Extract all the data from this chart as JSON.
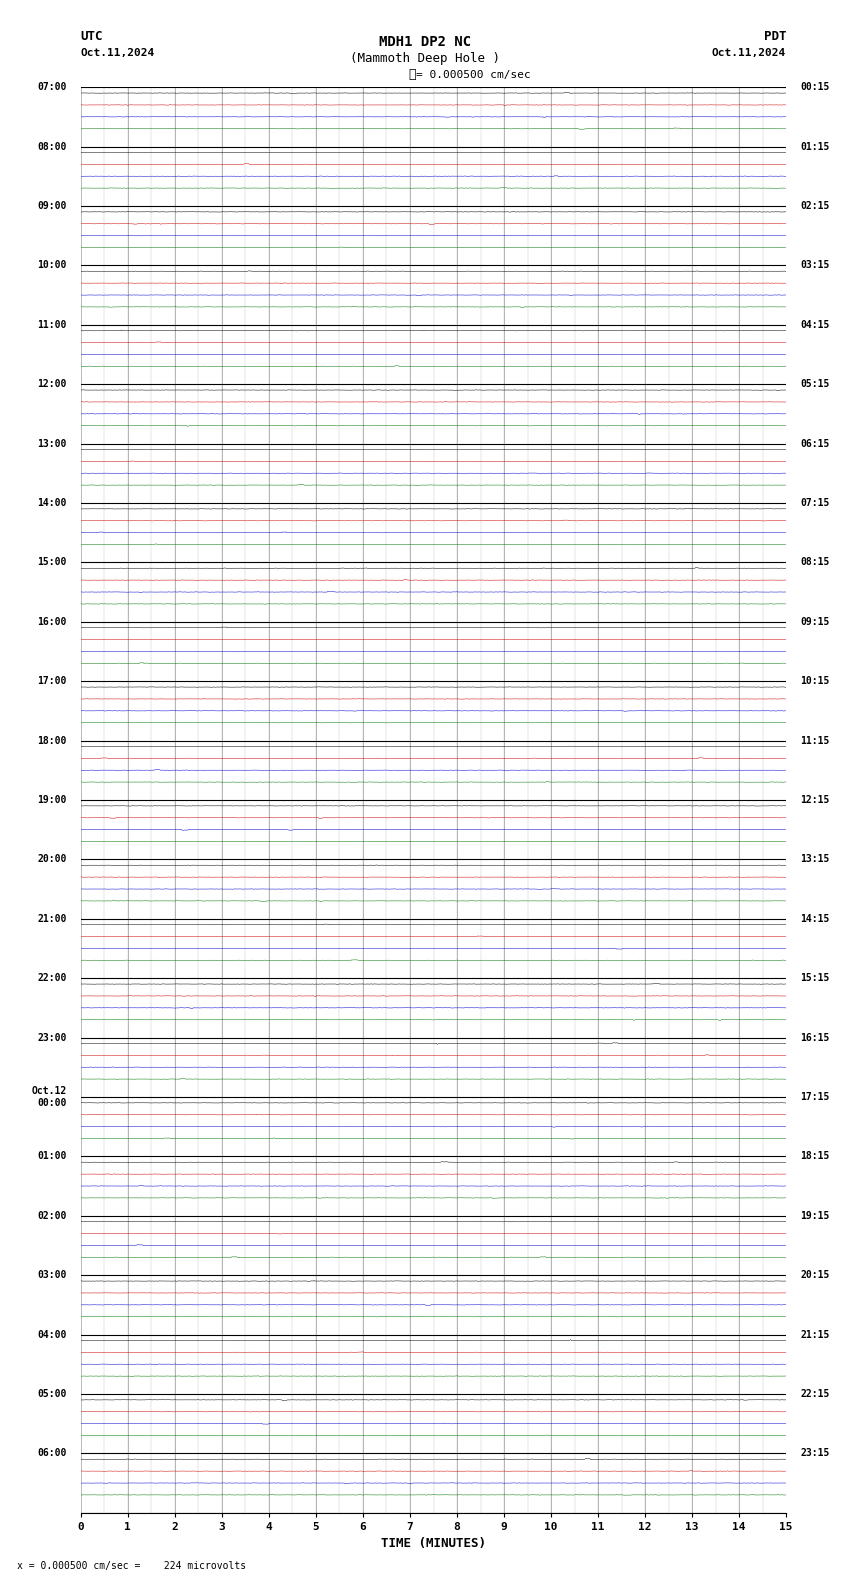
{
  "title_line1": "MDH1 DP2 NC",
  "title_line2": "(Mammoth Deep Hole )",
  "scale_label": "= 0.000500 cm/sec",
  "footer_label": "= 0.000500 cm/sec =    224 microvolts",
  "utc_label": "UTC",
  "pdt_label": "PDT",
  "date_left": "Oct.11,2024",
  "date_right": "Oct.11,2024",
  "xlabel": "TIME (MINUTES)",
  "x_ticks": [
    0,
    1,
    2,
    3,
    4,
    5,
    6,
    7,
    8,
    9,
    10,
    11,
    12,
    13,
    14,
    15
  ],
  "minutes_per_row": 15,
  "num_rows": 24,
  "left_times": [
    "07:00",
    "08:00",
    "09:00",
    "10:00",
    "11:00",
    "12:00",
    "13:00",
    "14:00",
    "15:00",
    "16:00",
    "17:00",
    "18:00",
    "19:00",
    "20:00",
    "21:00",
    "22:00",
    "23:00",
    "Oct.12\n00:00",
    "01:00",
    "02:00",
    "03:00",
    "04:00",
    "05:00",
    "06:00"
  ],
  "right_times": [
    "00:15",
    "01:15",
    "02:15",
    "03:15",
    "04:15",
    "05:15",
    "06:15",
    "07:15",
    "08:15",
    "09:15",
    "10:15",
    "11:15",
    "12:15",
    "13:15",
    "14:15",
    "15:15",
    "16:15",
    "17:15",
    "18:15",
    "19:15",
    "20:15",
    "21:15",
    "22:15",
    "23:15"
  ],
  "bg_color": "#ffffff",
  "trace_colors": [
    "#000000",
    "#cc0000",
    "#0000cc",
    "#007700"
  ],
  "separator_color": "#000000",
  "grid_color": "#888888",
  "noise_amplitude": 0.012,
  "seed": 12345,
  "traces_per_row": 4
}
